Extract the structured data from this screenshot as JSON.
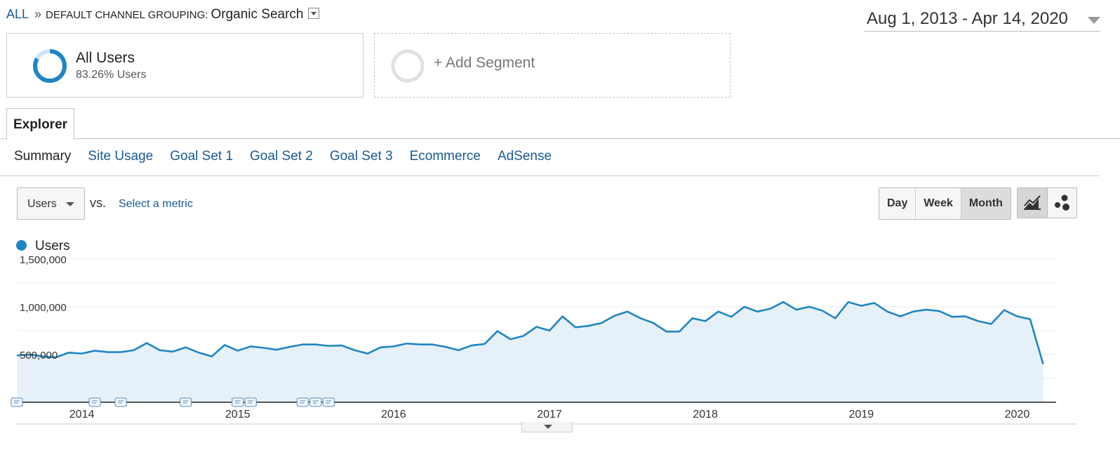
{
  "breadcrumb": {
    "root": "ALL",
    "separator": "»",
    "dimension_label": "DEFAULT CHANNEL GROUPING:",
    "dimension_value": "Organic Search"
  },
  "date_range": "Aug 1, 2013 - Apr 14, 2020",
  "segments": {
    "all_users": {
      "title": "All Users",
      "subtitle": "83.26% Users",
      "share": 0.8326
    },
    "add_segment": {
      "label": "+ Add Segment"
    }
  },
  "tabs": {
    "explorer": "Explorer"
  },
  "subtabs": [
    "Summary",
    "Site Usage",
    "Goal Set 1",
    "Goal Set 2",
    "Goal Set 3",
    "Ecommerce",
    "AdSense"
  ],
  "metric": {
    "selected": "Users",
    "vs_label": "vs.",
    "select_metric": "Select a metric"
  },
  "time_buttons": {
    "day": "Day",
    "week": "Week",
    "month": "Month",
    "selected": "Month"
  },
  "chart_type_buttons": {
    "line": "line-chart-icon",
    "motion": "motion-chart-icon",
    "selected": "line"
  },
  "legend": {
    "label": "Users"
  },
  "colors": {
    "accent": "#1f86c3",
    "fill": "#e6f0f8",
    "link": "#1a5a94"
  },
  "chart_data": {
    "type": "area",
    "series": [
      {
        "name": "Users",
        "x": [
          "2013-08",
          "2013-09",
          "2013-10",
          "2013-11",
          "2013-12",
          "2014-01",
          "2014-02",
          "2014-03",
          "2014-04",
          "2014-05",
          "2014-06",
          "2014-07",
          "2014-08",
          "2014-09",
          "2014-10",
          "2014-11",
          "2014-12",
          "2015-01",
          "2015-02",
          "2015-03",
          "2015-04",
          "2015-05",
          "2015-06",
          "2015-07",
          "2015-08",
          "2015-09",
          "2015-10",
          "2015-11",
          "2015-12",
          "2016-01",
          "2016-02",
          "2016-03",
          "2016-04",
          "2016-05",
          "2016-06",
          "2016-07",
          "2016-08",
          "2016-09",
          "2016-10",
          "2016-11",
          "2016-12",
          "2017-01",
          "2017-02",
          "2017-03",
          "2017-04",
          "2017-05",
          "2017-06",
          "2017-07",
          "2017-08",
          "2017-09",
          "2017-10",
          "2017-11",
          "2017-12",
          "2018-01",
          "2018-02",
          "2018-03",
          "2018-04",
          "2018-05",
          "2018-06",
          "2018-07",
          "2018-08",
          "2018-09",
          "2018-10",
          "2018-11",
          "2018-12",
          "2019-01",
          "2019-02",
          "2019-03",
          "2019-04",
          "2019-05",
          "2019-06",
          "2019-07",
          "2019-08",
          "2019-09",
          "2019-10",
          "2019-11",
          "2019-12",
          "2020-01",
          "2020-02",
          "2020-03",
          "2020-04"
        ],
        "values": [
          490000,
          500000,
          480000,
          470000,
          520000,
          510000,
          540000,
          525000,
          525000,
          545000,
          620000,
          545000,
          530000,
          575000,
          520000,
          480000,
          600000,
          540000,
          585000,
          570000,
          550000,
          580000,
          605000,
          605000,
          590000,
          595000,
          545000,
          510000,
          575000,
          585000,
          615000,
          605000,
          605000,
          580000,
          545000,
          595000,
          610000,
          745000,
          660000,
          695000,
          790000,
          750000,
          900000,
          785000,
          800000,
          830000,
          905000,
          950000,
          880000,
          830000,
          740000,
          740000,
          880000,
          850000,
          950000,
          895000,
          1000000,
          950000,
          980000,
          1050000,
          970000,
          1000000,
          960000,
          880000,
          1050000,
          1010000,
          1040000,
          950000,
          900000,
          950000,
          970000,
          955000,
          895000,
          900000,
          850000,
          820000,
          965000,
          900000,
          870000,
          400000,
          null
        ]
      }
    ],
    "x_tick_labels": [
      "2014",
      "2015",
      "2016",
      "2017",
      "2018",
      "2019",
      "2020"
    ],
    "y_tick_labels": [
      "1,500,000",
      "1,000,000",
      "500,000"
    ],
    "ylim": [
      0,
      1500000
    ],
    "grid": true,
    "annotation_markers": [
      "2013-08",
      "2014-02",
      "2014-04",
      "2014-09",
      "2015-01",
      "2015-02",
      "2015-06",
      "2015-07",
      "2015-08"
    ]
  }
}
